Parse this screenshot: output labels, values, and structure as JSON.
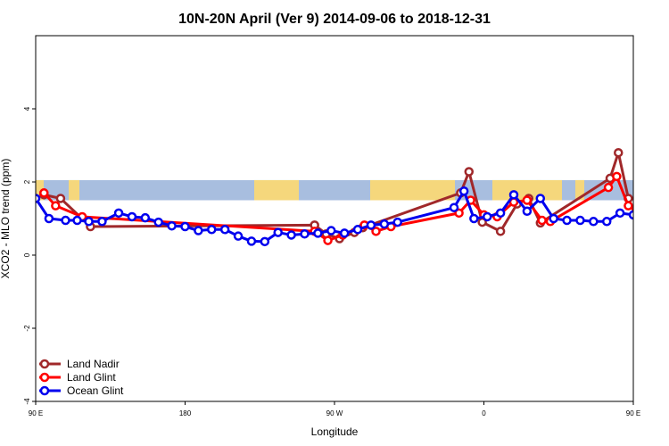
{
  "chart_data": {
    "type": "line",
    "title": "10N-20N April (Ver 9)   2014-09-06 to 2018-12-31",
    "xlabel": "Longitude",
    "ylabel": "XCO2 - MLO trend (ppm)",
    "xlim": [
      0,
      360
    ],
    "ylim": [
      -4,
      6
    ],
    "x_ticks": [
      {
        "value": 0,
        "label": "90 E"
      },
      {
        "value": 90,
        "label": "180"
      },
      {
        "value": 180,
        "label": "90 W"
      },
      {
        "value": 270,
        "label": "0"
      },
      {
        "value": 360,
        "label": "90 E"
      },
      {
        "value": 450,
        "label": "180"
      }
    ],
    "y_ticks": [
      {
        "value": -4,
        "label": "-4"
      },
      {
        "value": -2,
        "label": "-2"
      },
      {
        "value": 0,
        "label": "0"
      },
      {
        "value": 2,
        "label": "2"
      },
      {
        "value": 4,
        "label": "4"
      }
    ],
    "note_x_axis": "longitude shifted so 0 = 90E",
    "land_band": {
      "y_bottom": 1.5,
      "y_top": 2.05,
      "ocean_color": "#a8bedf",
      "land_color": "#f5d77c"
    },
    "legend_position": "bottom-left",
    "series": [
      {
        "name": "Land Nadir",
        "color": "#a0282a",
        "points": [
          [
            5,
            1.65
          ],
          [
            15,
            1.55
          ],
          [
            33,
            0.78
          ],
          [
            168,
            0.82
          ],
          [
            175,
            0.58
          ],
          [
            183,
            0.45
          ],
          [
            192,
            0.62
          ],
          [
            197,
            0.75
          ],
          [
            256,
            1.7
          ],
          [
            261,
            2.28
          ],
          [
            269,
            0.9
          ],
          [
            280,
            0.65
          ],
          [
            290,
            1.4
          ],
          [
            297,
            1.55
          ],
          [
            304,
            0.88
          ],
          [
            346,
            2.1
          ],
          [
            351,
            2.8
          ],
          [
            357,
            1.55
          ],
          [
            364,
            0.8
          ]
        ]
      },
      {
        "name": "Land Glint",
        "color": "#ff0000",
        "points": [
          [
            5,
            1.7
          ],
          [
            12,
            1.35
          ],
          [
            28,
            1.05
          ],
          [
            168,
            0.65
          ],
          [
            176,
            0.4
          ],
          [
            185,
            0.55
          ],
          [
            198,
            0.82
          ],
          [
            205,
            0.65
          ],
          [
            214,
            0.78
          ],
          [
            255,
            1.15
          ],
          [
            262,
            1.5
          ],
          [
            270,
            1.1
          ],
          [
            278,
            1.05
          ],
          [
            288,
            1.45
          ],
          [
            296,
            1.5
          ],
          [
            305,
            0.95
          ],
          [
            310,
            0.92
          ],
          [
            345,
            1.85
          ],
          [
            350,
            2.15
          ],
          [
            357,
            1.35
          ],
          [
            366,
            1.05
          ]
        ]
      },
      {
        "name": "Ocean Glint",
        "color": "#0000ee",
        "points": [
          [
            0,
            1.55
          ],
          [
            8,
            1.0
          ],
          [
            18,
            0.95
          ],
          [
            25,
            0.95
          ],
          [
            32,
            0.92
          ],
          [
            40,
            0.92
          ],
          [
            50,
            1.15
          ],
          [
            58,
            1.05
          ],
          [
            66,
            1.02
          ],
          [
            74,
            0.9
          ],
          [
            82,
            0.8
          ],
          [
            90,
            0.78
          ],
          [
            98,
            0.67
          ],
          [
            106,
            0.7
          ],
          [
            114,
            0.7
          ],
          [
            122,
            0.52
          ],
          [
            130,
            0.38
          ],
          [
            138,
            0.37
          ],
          [
            146,
            0.62
          ],
          [
            154,
            0.55
          ],
          [
            162,
            0.58
          ],
          [
            170,
            0.6
          ],
          [
            178,
            0.67
          ],
          [
            186,
            0.6
          ],
          [
            194,
            0.7
          ],
          [
            202,
            0.82
          ],
          [
            210,
            0.85
          ],
          [
            218,
            0.9
          ],
          [
            252,
            1.3
          ],
          [
            258,
            1.75
          ],
          [
            264,
            1.0
          ],
          [
            272,
            1.05
          ],
          [
            280,
            1.15
          ],
          [
            288,
            1.65
          ],
          [
            296,
            1.2
          ],
          [
            304,
            1.55
          ],
          [
            312,
            1.0
          ],
          [
            320,
            0.95
          ],
          [
            328,
            0.95
          ],
          [
            336,
            0.92
          ],
          [
            344,
            0.92
          ],
          [
            352,
            1.15
          ],
          [
            360,
            1.1
          ],
          [
            368,
            1.05
          ],
          [
            376,
            1.0
          ],
          [
            384,
            0.88
          ]
        ]
      }
    ]
  }
}
